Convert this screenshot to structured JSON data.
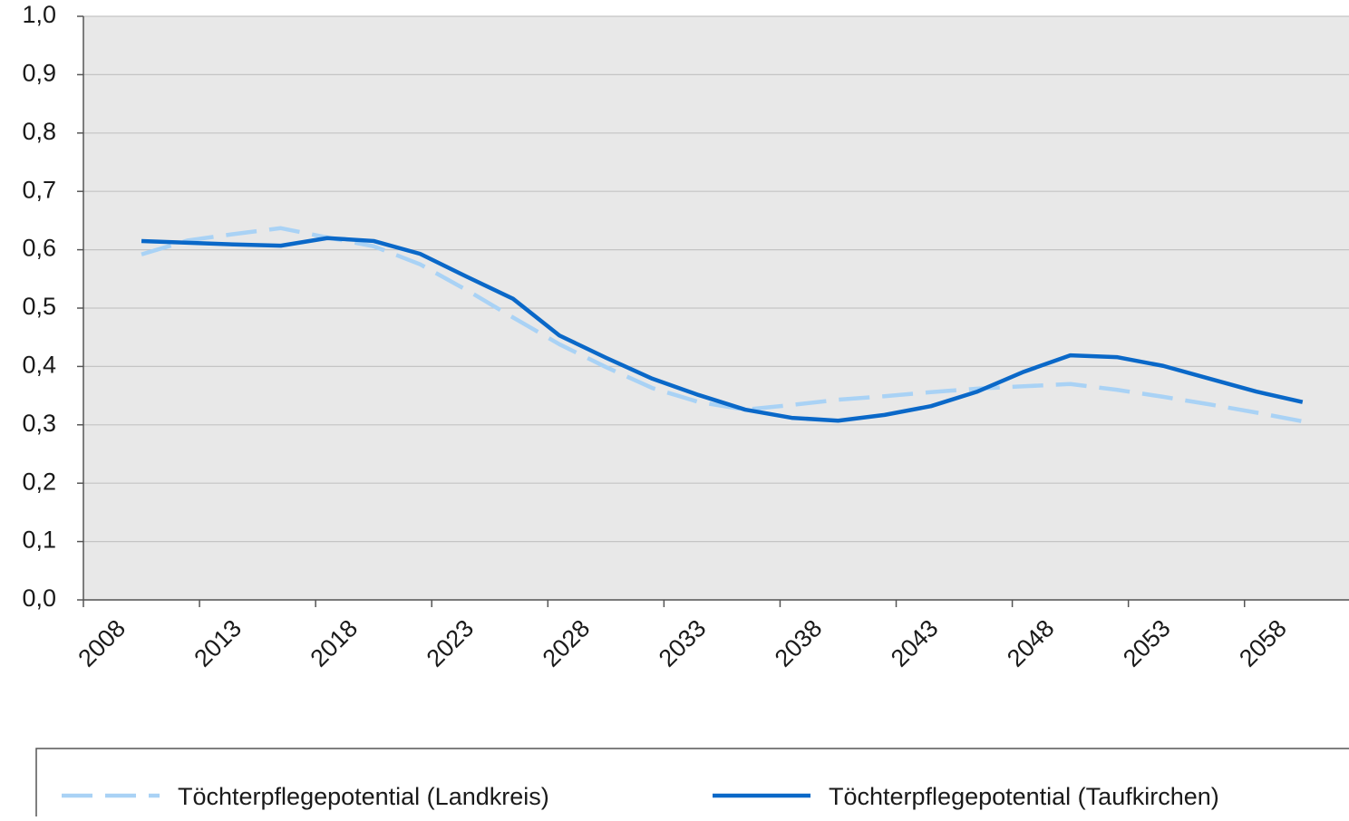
{
  "chart_data": {
    "type": "line",
    "x": [
      2010,
      2012,
      2014,
      2016,
      2018,
      2020,
      2022,
      2024,
      2026,
      2028,
      2030,
      2032,
      2034,
      2036,
      2038,
      2040,
      2042,
      2044,
      2046,
      2048,
      2050,
      2052,
      2054,
      2056,
      2058,
      2060
    ],
    "series": [
      {
        "name": "Töchterpflegepotential (Landkreis)",
        "color": "#a9d2f5",
        "dashed": true,
        "values": [
          0.592,
          0.616,
          0.627,
          0.637,
          0.621,
          0.606,
          0.575,
          0.531,
          0.484,
          0.438,
          0.399,
          0.363,
          0.339,
          0.326,
          0.334,
          0.343,
          0.349,
          0.356,
          0.362,
          0.366,
          0.37,
          0.36,
          0.348,
          0.335,
          0.321,
          0.306
        ]
      },
      {
        "name": "Töchterpflegepotential (Taufkirchen)",
        "color": "#0a68c8",
        "dashed": false,
        "values": [
          0.615,
          0.612,
          0.609,
          0.607,
          0.62,
          0.615,
          0.593,
          0.554,
          0.516,
          0.453,
          0.415,
          0.379,
          0.351,
          0.326,
          0.312,
          0.307,
          0.317,
          0.332,
          0.357,
          0.391,
          0.419,
          0.416,
          0.401,
          0.379,
          0.357,
          0.339
        ]
      }
    ],
    "xlim": [
      2007.5,
      2062
    ],
    "xticks": [
      2008,
      2013,
      2018,
      2023,
      2028,
      2033,
      2038,
      2043,
      2048,
      2053,
      2058
    ],
    "ylim": [
      0,
      1
    ],
    "yticks": [
      {
        "value": 0,
        "label": "0,0"
      },
      {
        "value": 0.1,
        "label": "0,1"
      },
      {
        "value": 0.2,
        "label": "0,2"
      },
      {
        "value": 0.3,
        "label": "0,3"
      },
      {
        "value": 0.4,
        "label": "0,4"
      },
      {
        "value": 0.5,
        "label": "0,5"
      },
      {
        "value": 0.6,
        "label": "0,6"
      },
      {
        "value": 0.7,
        "label": "0,7"
      },
      {
        "value": 0.8,
        "label": "0,8"
      },
      {
        "value": 0.9,
        "label": "0,9"
      },
      {
        "value": 1,
        "label": "1,0"
      }
    ],
    "grid": true,
    "legend": "bottom"
  }
}
